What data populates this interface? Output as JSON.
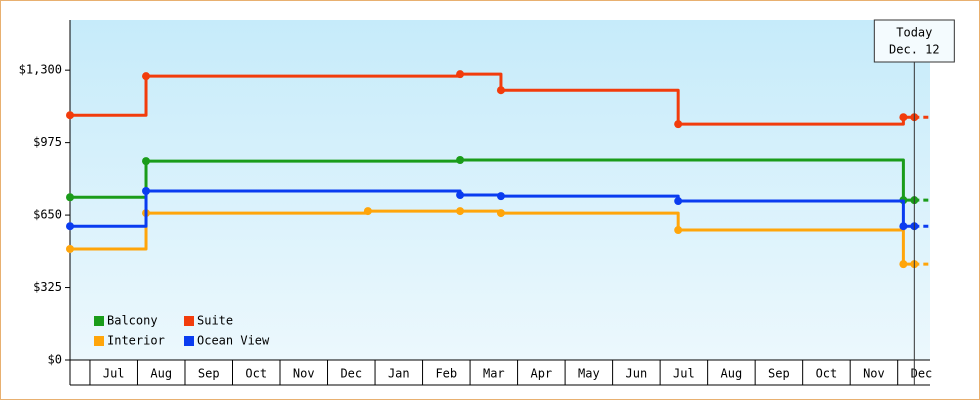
{
  "chart_data": {
    "type": "step",
    "xlim": [
      0.58,
      18.68
    ],
    "ylim": [
      0,
      1525
    ],
    "yticks": [
      {
        "value": 0,
        "label": "$0"
      },
      {
        "value": 325,
        "label": "$325"
      },
      {
        "value": 650,
        "label": "$650"
      },
      {
        "value": 975,
        "label": "$975"
      },
      {
        "value": 1300,
        "label": "$1,300"
      }
    ],
    "xticks": [
      {
        "value": 1.5,
        "label": "Jul"
      },
      {
        "value": 2.5,
        "label": "Aug"
      },
      {
        "value": 3.5,
        "label": "Sep"
      },
      {
        "value": 4.5,
        "label": "Oct"
      },
      {
        "value": 5.5,
        "label": "Nov"
      },
      {
        "value": 6.5,
        "label": "Dec"
      },
      {
        "value": 7.5,
        "label": "Jan"
      },
      {
        "value": 8.5,
        "label": "Feb"
      },
      {
        "value": 9.5,
        "label": "Mar"
      },
      {
        "value": 10.5,
        "label": "Apr"
      },
      {
        "value": 11.5,
        "label": "May"
      },
      {
        "value": 12.5,
        "label": "Jun"
      },
      {
        "value": 13.5,
        "label": "Jul"
      },
      {
        "value": 14.5,
        "label": "Aug"
      },
      {
        "value": 15.5,
        "label": "Sep"
      },
      {
        "value": 16.5,
        "label": "Oct"
      },
      {
        "value": 17.5,
        "label": "Nov"
      },
      {
        "value": 18.5,
        "label": "Dec"
      }
    ],
    "annotation": {
      "x": 18.35,
      "lines": [
        "Today",
        "Dec. 12"
      ]
    },
    "legend": "lower left",
    "series": [
      {
        "name": "Balcony",
        "color": "#1a9c1a",
        "x": [
          0.58,
          2.18,
          8.79,
          18.12,
          18.35
        ],
        "values": [
          730,
          892,
          897,
          717,
          717
        ]
      },
      {
        "name": "Suite",
        "color": "#f23c0c",
        "x": [
          0.58,
          2.18,
          8.79,
          9.65,
          13.38,
          18.12,
          18.35
        ],
        "values": [
          1098,
          1273,
          1282,
          1210,
          1058,
          1089,
          1089
        ]
      },
      {
        "name": "Interior",
        "color": "#ffa50a",
        "x": [
          0.58,
          2.18,
          6.85,
          8.79,
          9.65,
          13.38,
          18.12,
          18.35
        ],
        "values": [
          498,
          659,
          668,
          668,
          659,
          583,
          430,
          430
        ]
      },
      {
        "name": "Ocean View",
        "color": "#0a3cf0",
        "x": [
          0.58,
          2.18,
          8.79,
          9.65,
          13.38,
          18.12,
          18.35
        ],
        "values": [
          600,
          758,
          740,
          735,
          713,
          600,
          600
        ]
      }
    ]
  }
}
